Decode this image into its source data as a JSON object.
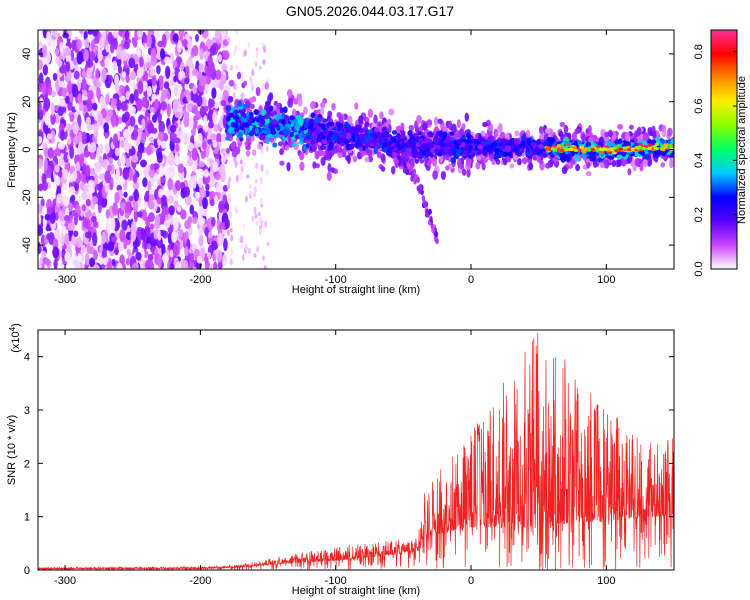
{
  "figure_title": "GN05.2026.044.03.17.G17",
  "chart_data": [
    {
      "type": "heatmap",
      "name": "spectrogram",
      "xlabel": "Height of straight line (km)",
      "ylabel": "Frequency (Hz)",
      "xlim": [
        -320,
        150
      ],
      "ylim": [
        -50,
        50
      ],
      "x_ticks": [
        -300,
        -200,
        -100,
        0,
        100
      ],
      "y_ticks": [
        -40,
        -20,
        0,
        20,
        40
      ],
      "colorbar": {
        "label": "Normalized spectral amplitude",
        "range": [
          0,
          0.88
        ],
        "ticks": [
          0.0,
          0.2,
          0.4,
          0.6,
          0.8
        ],
        "colors": [
          "#ffffff",
          "#cc44ff",
          "#5500ff",
          "#0000ff",
          "#00ccff",
          "#00ff66",
          "#88ff00",
          "#ffee00",
          "#ff8800",
          "#ff0000",
          "#ff3399"
        ]
      },
      "features": {
        "noise_region_x": [
          -320,
          -180
        ],
        "signal_start_x": -180,
        "signal_center_freq_hz": [
          [
            -180,
            12
          ],
          [
            -100,
            6
          ],
          [
            -50,
            2
          ],
          [
            0,
            1
          ],
          [
            100,
            0
          ],
          [
            150,
            1
          ]
        ],
        "branch_freq_hz": [
          [
            -60,
            0
          ],
          [
            -40,
            -12
          ],
          [
            -25,
            -38
          ]
        ],
        "peak_x_range": [
          55,
          150
        ]
      }
    },
    {
      "type": "line",
      "name": "snr",
      "xlabel": "Height of straight line (km)",
      "ylabel": "SNR (10 * v/v)",
      "y_multiplier": "(x10",
      "y_multiplier_exp": "4",
      "y_multiplier_close": ")",
      "xlim": [
        -320,
        150
      ],
      "ylim": [
        0,
        4.5
      ],
      "x_ticks": [
        -300,
        -200,
        -100,
        0,
        100
      ],
      "y_ticks": [
        0,
        1,
        2,
        3,
        4
      ],
      "color": "#ee2222",
      "envelope": {
        "x": [
          -320,
          -200,
          -170,
          -140,
          -100,
          -60,
          -40,
          -35,
          -20,
          0,
          20,
          40,
          50,
          80,
          100,
          130,
          150
        ],
        "base": [
          0.02,
          0.03,
          0.05,
          0.12,
          0.18,
          0.28,
          0.35,
          0.6,
          0.7,
          0.8,
          0.8,
          0.8,
          0.8,
          0.9,
          0.9,
          1.0,
          1.0
        ],
        "peak": [
          0.05,
          0.06,
          0.1,
          0.25,
          0.45,
          0.55,
          0.6,
          1.5,
          2.0,
          2.6,
          3.4,
          4.2,
          4.6,
          3.6,
          3.0,
          2.5,
          2.5
        ]
      }
    }
  ]
}
